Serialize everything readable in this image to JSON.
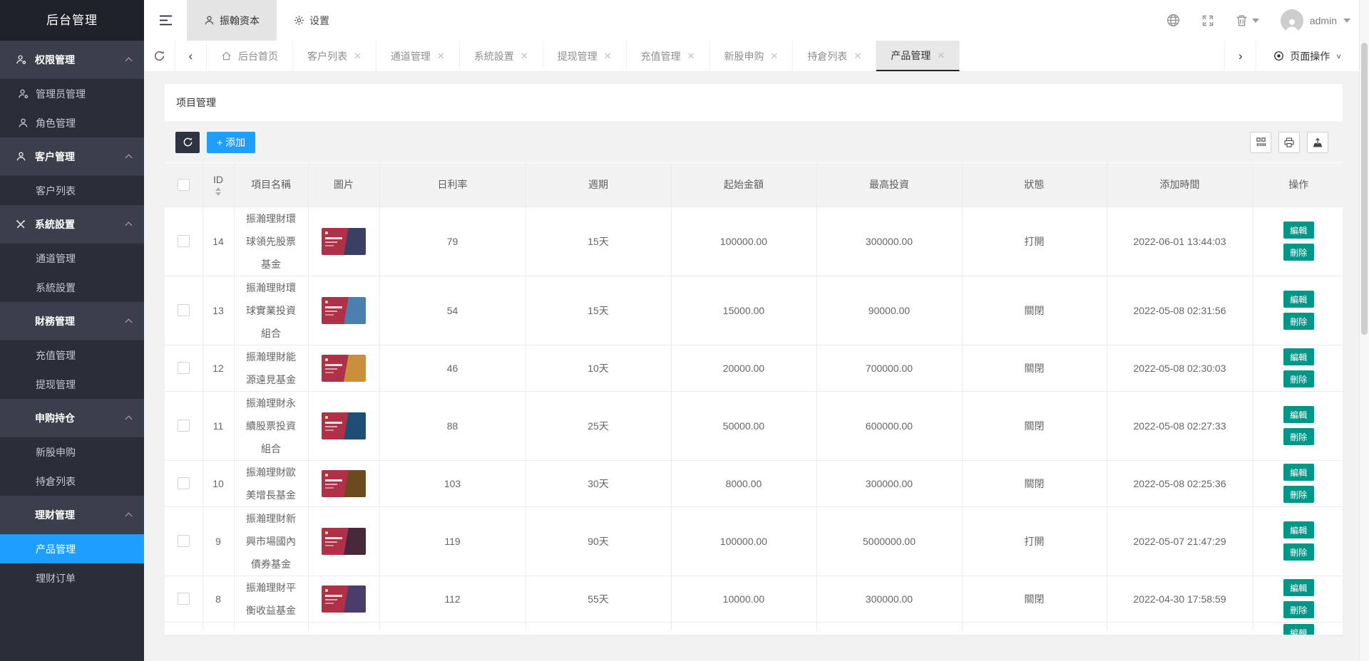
{
  "app": {
    "logo_text": "后台管理"
  },
  "topnav": {
    "tabs": [
      {
        "label": "振翰资本",
        "icon": "user-icon",
        "active": true
      },
      {
        "label": "设置",
        "icon": "gear-icon",
        "active": false
      }
    ],
    "username": "admin"
  },
  "tabbar": {
    "tabs": [
      {
        "label": "后台首页",
        "closable": false,
        "home": true,
        "active": false
      },
      {
        "label": "客户列表",
        "closable": true,
        "active": false
      },
      {
        "label": "通道管理",
        "closable": true,
        "active": false
      },
      {
        "label": "系統設置",
        "closable": true,
        "active": false
      },
      {
        "label": "提现管理",
        "closable": true,
        "active": false
      },
      {
        "label": "充值管理",
        "closable": true,
        "active": false
      },
      {
        "label": "新股申购",
        "closable": true,
        "active": false
      },
      {
        "label": "持倉列表",
        "closable": true,
        "active": false
      },
      {
        "label": "产品管理",
        "closable": true,
        "active": true
      }
    ],
    "page_actions_label": "页面操作"
  },
  "sidebar": {
    "groups": [
      {
        "label": "权限管理",
        "icon": "user-gear-icon",
        "items": [
          {
            "label": "管理员管理",
            "icon": "user-gear-icon",
            "active": false
          },
          {
            "label": "角色管理",
            "icon": "user-icon",
            "active": false
          }
        ]
      },
      {
        "label": "客户管理",
        "icon": "user-icon",
        "items": [
          {
            "label": "客户列表",
            "active": false
          }
        ]
      },
      {
        "label": "系統設置",
        "icon": "wrench-icon",
        "items": [
          {
            "label": "通道管理",
            "active": false
          },
          {
            "label": "系統設置",
            "active": false
          }
        ]
      },
      {
        "label": "財務管理",
        "items": [
          {
            "label": "充值管理",
            "active": false
          },
          {
            "label": "提现管理",
            "active": false
          }
        ]
      },
      {
        "label": "申购持仓",
        "items": [
          {
            "label": "新股申购",
            "active": false
          },
          {
            "label": "持倉列表",
            "active": false
          }
        ]
      },
      {
        "label": "理财管理",
        "items": [
          {
            "label": "产品管理",
            "active": true
          },
          {
            "label": "理财订单",
            "active": false
          }
        ]
      }
    ]
  },
  "card": {
    "title": "项目管理",
    "add_button_label": "+ 添加"
  },
  "table": {
    "headers": [
      "ID",
      "項目名稱",
      "圖片",
      "日利率",
      "週期",
      "起始金額",
      "最高投資",
      "狀態",
      "添加時間",
      "操作"
    ],
    "action_labels": {
      "edit": "編輯",
      "delete": "刪除"
    },
    "rows": [
      {
        "id": "14",
        "name": "振瀚理財環球領先股票基金",
        "rate": "79",
        "period": "15天",
        "min": "100000.00",
        "max": "300000.00",
        "status": "打開",
        "time": "2022-06-01 13:44:03",
        "banner_left": "#b03048",
        "banner_right": "#3a3f63"
      },
      {
        "id": "13",
        "name": "振瀚理財環球實業投資組合",
        "rate": "54",
        "period": "15天",
        "min": "15000.00",
        "max": "90000.00",
        "status": "關閉",
        "time": "2022-05-08 02:31:56",
        "banner_left": "#b03048",
        "banner_right": "#4a7fae"
      },
      {
        "id": "12",
        "name": "振瀚理財能源遠見基金",
        "rate": "46",
        "period": "10天",
        "min": "20000.00",
        "max": "700000.00",
        "status": "關閉",
        "time": "2022-05-08 02:30:03",
        "banner_left": "#b03048",
        "banner_right": "#c98f3a"
      },
      {
        "id": "11",
        "name": "振瀚理財永續股票投資組合",
        "rate": "88",
        "period": "25天",
        "min": "50000.00",
        "max": "600000.00",
        "status": "關閉",
        "time": "2022-05-08 02:27:33",
        "banner_left": "#b03048",
        "banner_right": "#1d4e73"
      },
      {
        "id": "10",
        "name": "振瀚理財歐美增長基金",
        "rate": "103",
        "period": "30天",
        "min": "8000.00",
        "max": "300000.00",
        "status": "關閉",
        "time": "2022-05-08 02:25:36",
        "banner_left": "#b03048",
        "banner_right": "#6b4a1f"
      },
      {
        "id": "9",
        "name": "振瀚理財新興市場國內債券基金",
        "rate": "119",
        "period": "90天",
        "min": "100000.00",
        "max": "5000000.00",
        "status": "打開",
        "time": "2022-05-07 21:47:29",
        "banner_left": "#b03048",
        "banner_right": "#47283b"
      },
      {
        "id": "8",
        "name": "振瀚理財平衡收益基金",
        "rate": "112",
        "period": "55天",
        "min": "10000.00",
        "max": "300000.00",
        "status": "關閉",
        "time": "2022-04-30 17:58:59",
        "banner_left": "#b03048",
        "banner_right": "#4a3d6b"
      }
    ],
    "partial_row_visible": true
  },
  "colors": {
    "accent_blue": "#1e9fff",
    "action_teal": "#009688",
    "sidebar_dark": "#2b2e38",
    "toolbar_gray": "#f2f2f2"
  }
}
